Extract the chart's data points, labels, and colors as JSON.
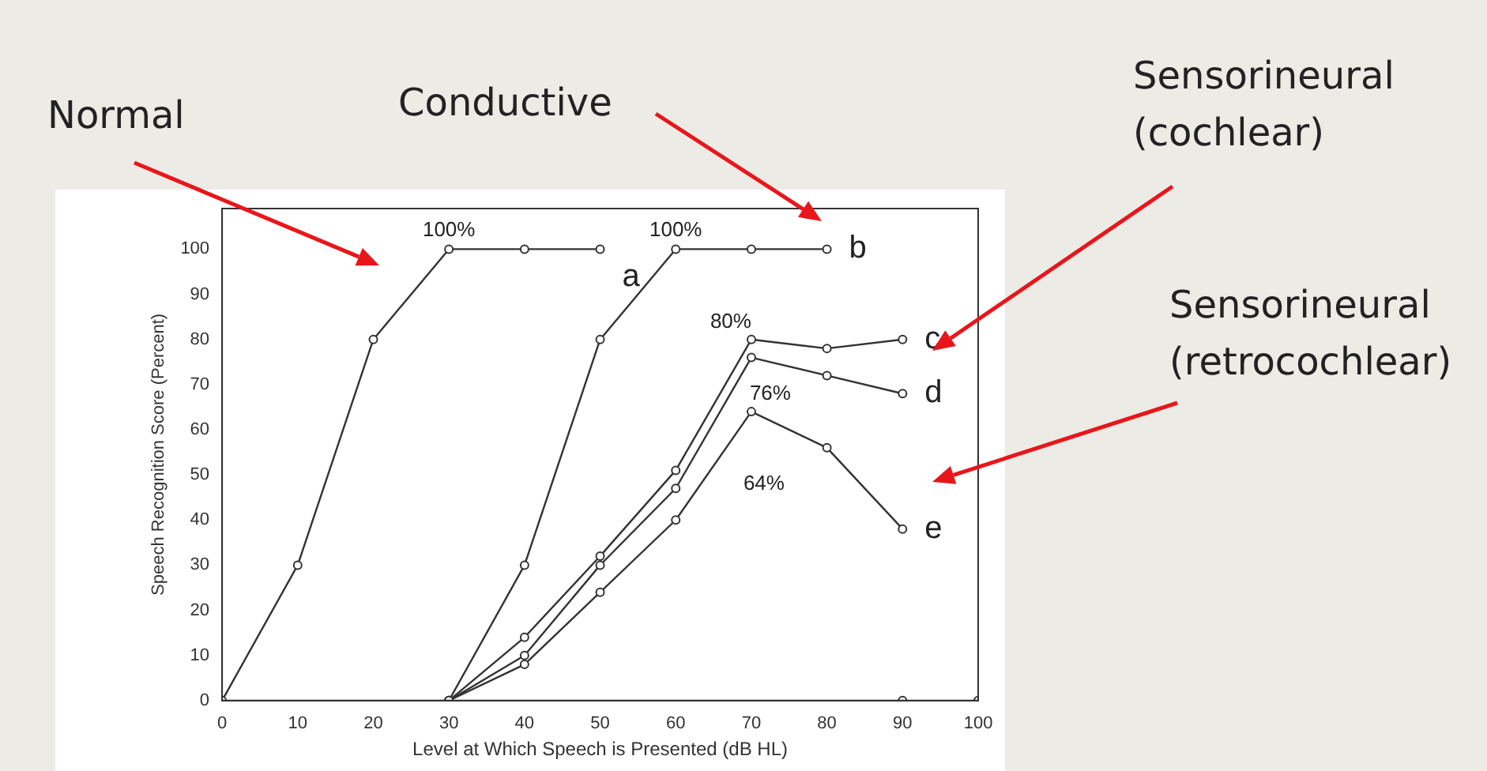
{
  "chart_data": {
    "type": "line",
    "xlabel": "Level at Which Speech is Presented (dB HL)",
    "ylabel": "Speech Recognition Score (Percent)",
    "xlim": [
      0,
      100
    ],
    "xticks": [
      0,
      10,
      20,
      30,
      40,
      50,
      60,
      70,
      80,
      90,
      100
    ],
    "ylim": [
      0,
      109
    ],
    "yticks": [
      0,
      10,
      20,
      30,
      40,
      50,
      60,
      70,
      80,
      90,
      100
    ],
    "grid": false,
    "legend": false,
    "marker": "circle",
    "line_style": "solid",
    "series": [
      {
        "name": "a",
        "color": "#333333",
        "x": [
          0,
          10,
          20,
          30,
          40,
          50
        ],
        "values": [
          0,
          30,
          80,
          100,
          100,
          100
        ]
      },
      {
        "name": "b",
        "color": "#333333",
        "x": [
          30,
          40,
          50,
          60,
          70,
          80
        ],
        "values": [
          0,
          30,
          80,
          100,
          100,
          100
        ]
      },
      {
        "name": "c",
        "color": "#333333",
        "x": [
          30,
          40,
          50,
          60,
          70,
          80,
          90
        ],
        "values": [
          0,
          14,
          32,
          51,
          80,
          78,
          80
        ]
      },
      {
        "name": "d",
        "color": "#333333",
        "x": [
          30,
          40,
          50,
          60,
          70,
          80,
          90
        ],
        "values": [
          0,
          10,
          30,
          47,
          76,
          72,
          68
        ]
      },
      {
        "name": "e",
        "color": "#333333",
        "x": [
          30,
          40,
          50,
          60,
          70,
          80,
          90
        ],
        "values": [
          0,
          8,
          24,
          40,
          64,
          56,
          38
        ]
      },
      {
        "type": "scatter",
        "color": "#333333",
        "x": [
          90,
          100
        ],
        "values": [
          0,
          0
        ]
      }
    ],
    "annotations": [
      {
        "text": "100%",
        "x": 30,
        "y": 100
      },
      {
        "text": "100%",
        "x": 60,
        "y": 100
      },
      {
        "text": "80%",
        "x": 70,
        "y": 80
      },
      {
        "text": "76%",
        "x": 70,
        "y": 76
      },
      {
        "text": "64%",
        "x": 70,
        "y": 64
      },
      "Normal",
      "Conductive",
      "Sensorineural\n(cochlear)",
      "Sensorineural\n(retrocochlear)"
    ]
  }
}
